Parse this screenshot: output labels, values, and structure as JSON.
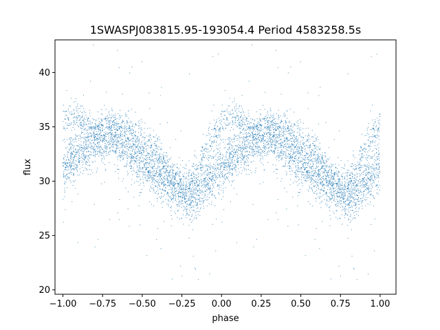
{
  "chart_data": {
    "type": "scatter",
    "title": "1SWASPJ083815.95-193054.4 Period 4583258.5s",
    "xlabel": "phase",
    "ylabel": "flux",
    "xlim": [
      -1.05,
      1.1
    ],
    "ylim": [
      19.6,
      43.0
    ],
    "x_ticks": [
      -1.0,
      -0.75,
      -0.5,
      -0.25,
      0.0,
      0.25,
      0.5,
      0.75,
      1.0
    ],
    "x_tick_labels": [
      "−1.00",
      "−0.75",
      "−0.50",
      "−0.25",
      "0.00",
      "0.25",
      "0.50",
      "0.75",
      "1.00"
    ],
    "y_ticks": [
      20,
      25,
      30,
      35,
      40
    ],
    "y_tick_labels": [
      "20",
      "25",
      "30",
      "35",
      "40"
    ],
    "grid": false,
    "point_color": "#1f77b4",
    "series": [
      {
        "trend_phase": [
          -1.0,
          -0.95,
          -0.9,
          -0.85,
          -0.8,
          -0.75,
          -0.7,
          -0.65,
          -0.6,
          -0.55,
          -0.5,
          -0.45,
          -0.4,
          -0.35,
          -0.3,
          -0.25,
          -0.2,
          -0.15,
          -0.1,
          -0.05,
          0.0
        ],
        "trend_flux": [
          31.0,
          31.8,
          32.4,
          33.0,
          33.6,
          33.9,
          34.0,
          33.6,
          33.0,
          32.3,
          31.8,
          31.2,
          30.6,
          30.0,
          29.3,
          28.8,
          28.6,
          29.0,
          29.8,
          30.6,
          31.2
        ],
        "upper_phase": [
          -1.0,
          -0.9,
          -0.8,
          -0.7,
          -0.6,
          -0.5,
          -0.45,
          -0.4,
          -0.35,
          -0.3,
          -0.25,
          -0.2,
          -0.15,
          -0.1,
          -0.05,
          0.0,
          0.03
        ],
        "upper_flux": [
          35.5,
          35.9,
          34.8,
          35.5,
          34.8,
          34.2,
          33.5,
          32.6,
          31.4,
          30.5,
          29.8,
          29.9,
          31.2,
          33.0,
          34.3,
          35.3,
          36.0
        ],
        "scatter_sigma": 1.1,
        "outlier_fraction": 0.04,
        "points_per_half": 3400,
        "mirrored_about_phase_zero": true
      }
    ]
  }
}
